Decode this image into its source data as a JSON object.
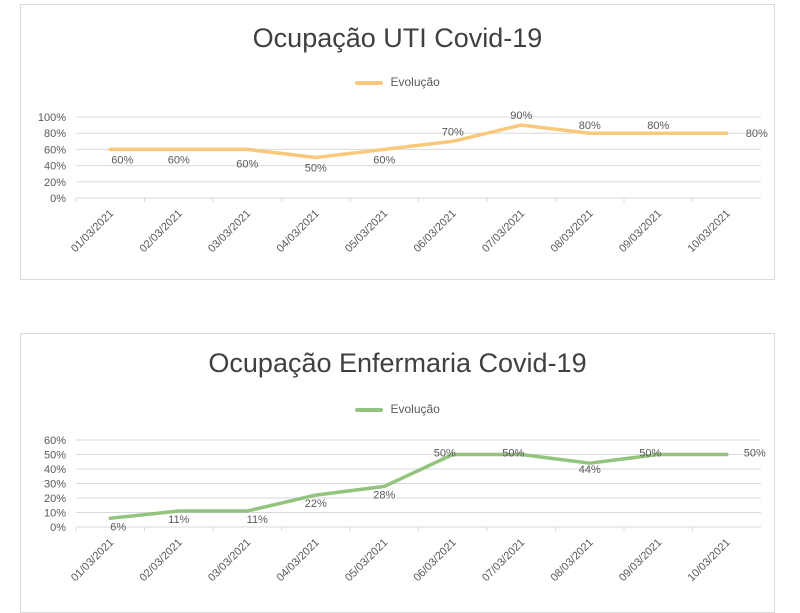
{
  "chart_data": [
    {
      "id": "uti",
      "type": "line",
      "title": "Ocupação UTI Covid-19",
      "categories": [
        "01/03/2021",
        "02/03/2021",
        "03/03/2021",
        "04/03/2021",
        "05/03/2021",
        "06/03/2021",
        "07/03/2021",
        "08/03/2021",
        "09/03/2021",
        "10/03/2021"
      ],
      "series": [
        {
          "name": "Evolução",
          "values": [
            60,
            60,
            60,
            50,
            60,
            70,
            90,
            80,
            80,
            80
          ],
          "labels": [
            "60%",
            "60%",
            "60%",
            "50%",
            "60%",
            "70%",
            "90%",
            "80%",
            "80%",
            "80%"
          ]
        }
      ],
      "yticks": [
        "0%",
        "20%",
        "40%",
        "60%",
        "80%",
        "100%"
      ],
      "ylim": [
        0,
        100
      ],
      "grid": true,
      "legend": "top",
      "color": "#f9c87a"
    },
    {
      "id": "enf",
      "type": "line",
      "title": "Ocupação Enfermaria Covid-19",
      "categories": [
        "01/03/2021",
        "02/03/2021",
        "03/03/2021",
        "04/03/2021",
        "05/03/2021",
        "06/03/2021",
        "07/03/2021",
        "08/03/2021",
        "09/03/2021",
        "10/03/2021"
      ],
      "series": [
        {
          "name": "Evolução",
          "values": [
            6,
            11,
            11,
            22,
            28,
            50,
            50,
            44,
            50,
            50
          ],
          "labels": [
            "6%",
            "11%",
            "11%",
            "22%",
            "28%",
            "50%",
            "50%",
            "44%",
            "50%",
            "50%"
          ]
        }
      ],
      "yticks": [
        "0%",
        "10%",
        "20%",
        "30%",
        "40%",
        "50%",
        "60%"
      ],
      "ylim": [
        0,
        60
      ],
      "grid": true,
      "legend": "top",
      "color": "#93c47d"
    }
  ]
}
